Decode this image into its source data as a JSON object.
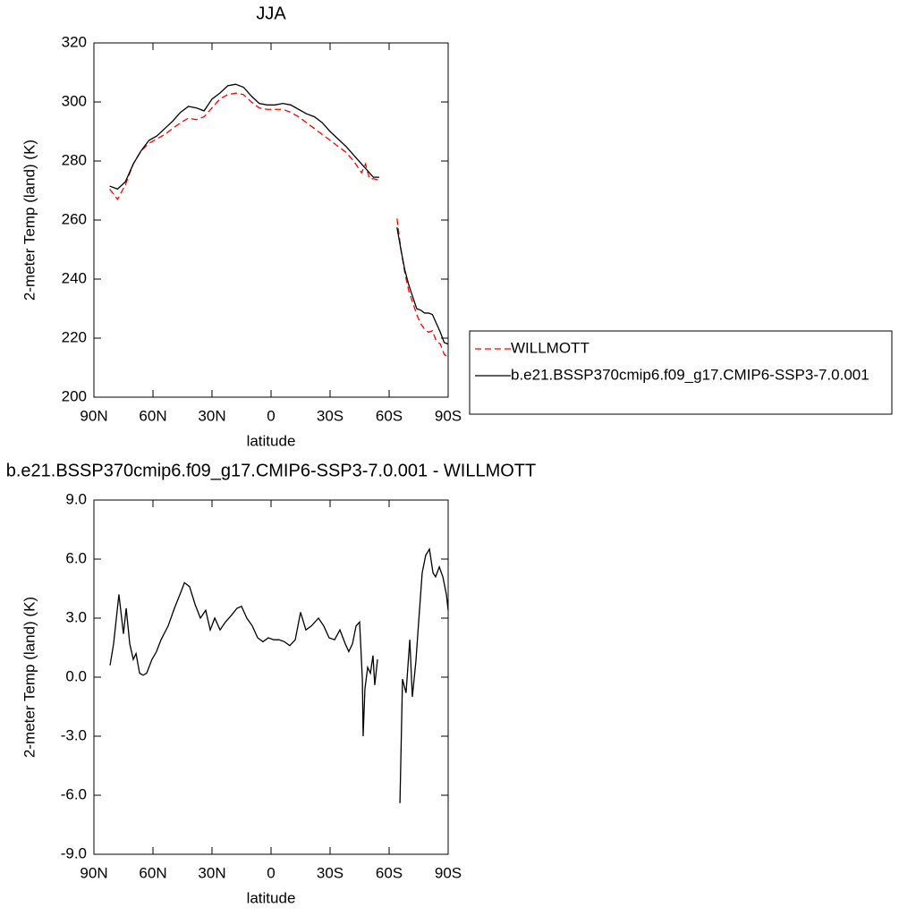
{
  "chart_data": [
    {
      "type": "line",
      "title": "JJA",
      "xlabel": "latitude",
      "ylabel": "2-meter Temp (land) (K)",
      "x": [
        82,
        78,
        74,
        70,
        66,
        62,
        58,
        54,
        50,
        46,
        42,
        38,
        34,
        30,
        26,
        22,
        18,
        14,
        10,
        6,
        2,
        -2,
        -6,
        -10,
        -14,
        -18,
        -22,
        -26,
        -30,
        -34,
        -38,
        -42,
        -46,
        -48,
        -50,
        -52,
        -55,
        -60,
        -64,
        -66,
        -68,
        -70,
        -72,
        -74,
        -76,
        -78,
        -80,
        -82,
        -84,
        -86,
        -88,
        -90
      ],
      "series": [
        {
          "name": "WILLMOTT",
          "color": "#ff0000",
          "line_style": "dashed",
          "values": [
            270.5,
            267,
            272,
            279,
            283.5,
            286,
            287.5,
            289,
            291,
            293,
            294.5,
            294,
            295,
            298,
            301,
            302.5,
            303,
            302.5,
            300,
            298,
            297.5,
            297.5,
            297.5,
            296.5,
            295,
            293,
            291,
            289,
            287,
            285,
            283,
            280,
            276,
            279,
            274,
            274,
            273.5,
            null,
            260.5,
            250,
            242,
            236,
            232,
            228,
            225,
            223,
            222,
            222.5,
            219,
            218,
            214.5,
            213.5
          ]
        },
        {
          "name": "b.e21.BSSP370cmip6.f09_g17.CMIP6-SSP3-7.0.001",
          "color": "#000000",
          "line_style": "solid",
          "values": [
            271.5,
            270.5,
            273,
            279,
            283.5,
            287,
            288.5,
            291,
            293.5,
            296.5,
            298.5,
            298,
            297,
            301,
            303,
            305.5,
            306,
            305,
            302,
            299.5,
            299,
            299,
            299.5,
            299,
            297.5,
            296,
            295,
            293,
            290,
            287.5,
            285,
            282,
            279,
            277.5,
            276,
            274.5,
            274.5,
            null,
            257.5,
            250,
            243,
            238,
            234,
            230,
            229.5,
            228.5,
            228.5,
            228,
            225,
            222,
            218.5,
            218
          ]
        }
      ],
      "xlim": [
        90,
        -90
      ],
      "xticks": [
        {
          "value": 90,
          "label": "90N"
        },
        {
          "value": 60,
          "label": "60N"
        },
        {
          "value": 30,
          "label": "30N"
        },
        0,
        {
          "value": -30,
          "label": "30S"
        },
        {
          "value": -60,
          "label": "60S"
        },
        {
          "value": -90,
          "label": "90S"
        }
      ],
      "ylim": [
        200,
        320
      ],
      "yticks": [
        200,
        220,
        240,
        260,
        280,
        300,
        320
      ],
      "legend": "right"
    },
    {
      "type": "line",
      "title": "b.e21.BSSP370cmip6.f09_g17.CMIP6-SSP3-7.0.001 - WILLMOTT",
      "xlabel": "latitude",
      "ylabel": "2-meter Temp (land) (K)",
      "x": [
        81.8,
        80,
        77.3,
        75,
        73.6,
        71.8,
        70,
        68.6,
        66.8,
        65,
        63.2,
        60.5,
        58.2,
        55.9,
        52.3,
        49.1,
        45.9,
        44,
        41.4,
        38.6,
        35.9,
        33.2,
        30.9,
        28.6,
        25.9,
        23.2,
        20.5,
        17.3,
        15,
        12.3,
        9.5,
        6.8,
        4.1,
        1.4,
        -1.4,
        -4.1,
        -6.8,
        -9.5,
        -12.3,
        -15,
        -17.7,
        -20.5,
        -24.1,
        -26.8,
        -29.5,
        -32.3,
        -35,
        -37.7,
        -39.5,
        -41.4,
        -43.2,
        -45,
        -46.4,
        -46.8,
        -47.7,
        -49.1,
        -50.5,
        -51.8,
        -52.7,
        -54.1,
        -60,
        -65.5,
        -66.8,
        -68.6,
        -70.5,
        -71.8,
        -73.6,
        -75,
        -76.8,
        -78.6,
        -80.5,
        -82.3,
        -83.6,
        -85.5,
        -87.3,
        -89.1,
        -90
      ],
      "values": [
        0.6,
        1.7,
        4.2,
        2.2,
        3.5,
        1.7,
        0.9,
        1.2,
        0.2,
        0.1,
        0.2,
        0.9,
        1.3,
        1.9,
        2.6,
        3.5,
        4.3,
        4.8,
        4.6,
        3.7,
        3.0,
        3.4,
        2.4,
        3.0,
        2.4,
        2.8,
        3.1,
        3.5,
        3.6,
        3.0,
        2.6,
        2.0,
        1.8,
        2.0,
        1.9,
        1.9,
        1.8,
        1.6,
        1.9,
        3.3,
        2.4,
        2.6,
        3.0,
        2.6,
        2.0,
        1.9,
        2.4,
        1.7,
        1.3,
        1.7,
        2.6,
        2.8,
        -0.1,
        -3.0,
        -0.6,
        0.5,
        0.2,
        1.1,
        -0.4,
        0.9,
        null,
        -6.4,
        -0.1,
        -0.8,
        1.9,
        -1.0,
        0.8,
        2.8,
        5.3,
        6.2,
        6.5,
        5.3,
        5.1,
        5.6,
        5.1,
        4.2,
        3.4
      ],
      "color": "#000000",
      "xlim": [
        90,
        -90
      ],
      "xticks": [
        {
          "value": 90,
          "label": "90N"
        },
        {
          "value": 60,
          "label": "60N"
        },
        {
          "value": 30,
          "label": "30N"
        },
        0,
        {
          "value": -30,
          "label": "30S"
        },
        {
          "value": -60,
          "label": "60S"
        },
        {
          "value": -90,
          "label": "90S"
        }
      ],
      "ylim": [
        -9,
        9
      ],
      "yticks": [
        {
          "value": -9,
          "label": "-9.0"
        },
        {
          "value": -6,
          "label": "-6.0"
        },
        {
          "value": -3,
          "label": "-3.0"
        },
        {
          "value": 0,
          "label": "0.0"
        },
        {
          "value": 3,
          "label": "3.0"
        },
        {
          "value": 6,
          "label": "6.0"
        },
        {
          "value": 9,
          "label": "9.0"
        }
      ]
    }
  ]
}
